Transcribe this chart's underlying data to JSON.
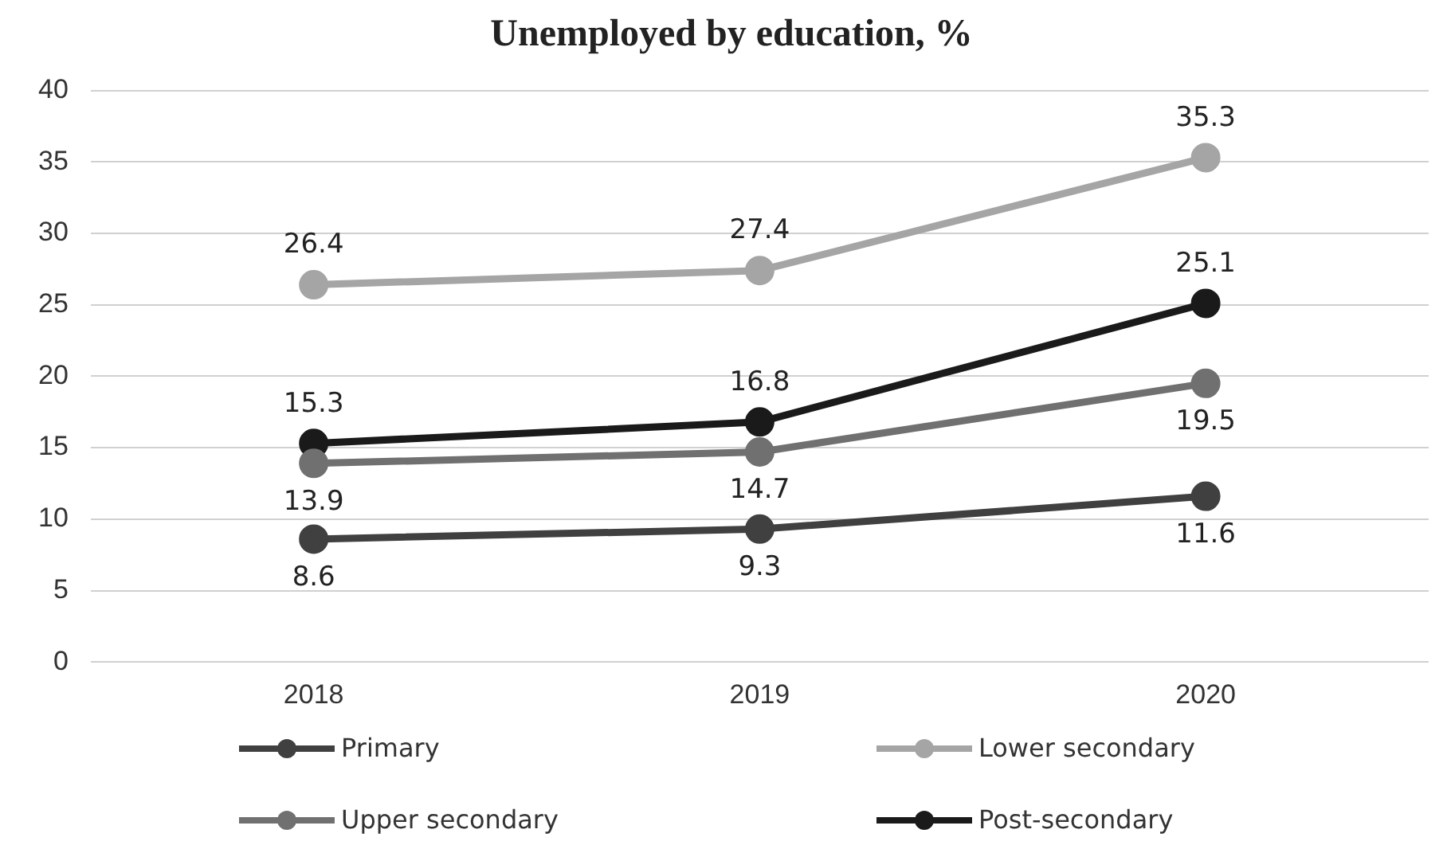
{
  "chart_data": {
    "type": "line",
    "title": "Unemployed by education, %",
    "categories": [
      "2018",
      "2019",
      "2020"
    ],
    "series": [
      {
        "name": "Primary",
        "color": "#404040",
        "values": [
          8.6,
          9.3,
          11.6
        ]
      },
      {
        "name": "Lower secondary",
        "color": "#a5a5a5",
        "values": [
          26.4,
          27.4,
          35.3
        ]
      },
      {
        "name": "Upper secondary",
        "color": "#707070",
        "values": [
          13.9,
          14.7,
          19.5
        ]
      },
      {
        "name": "Post-secondary",
        "color": "#1a1a1a",
        "values": [
          15.3,
          16.8,
          25.1
        ]
      }
    ],
    "ylim": [
      0,
      40
    ],
    "yticks": [
      0,
      5,
      10,
      15,
      20,
      25,
      30,
      35,
      40
    ],
    "grid": "y",
    "legend": "bottom",
    "marker": "circle",
    "line_style": "solid",
    "data_labels": true
  }
}
